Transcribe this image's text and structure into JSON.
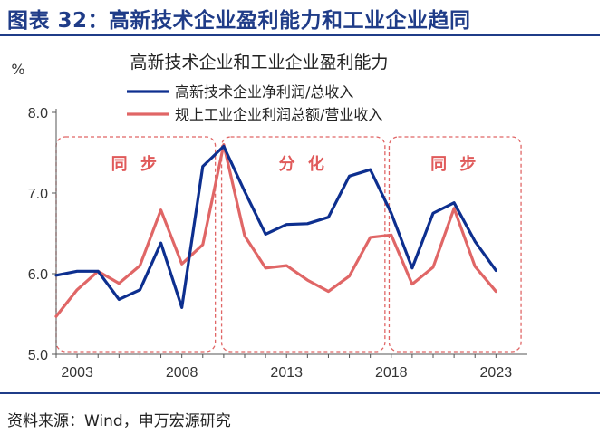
{
  "header": {
    "title": "图表 32：高新技术企业盈利能力和工业企业趋同"
  },
  "footer": {
    "source": "资料来源：Wind，申万宏源研究"
  },
  "colors": {
    "accent": "#1f3c88",
    "series_blue": "#0d2f8f",
    "series_red": "#e06666"
  },
  "chart_data": {
    "type": "line",
    "title": "高新技术企业和工业企业盈利能力",
    "unit_label": "%",
    "x": [
      2002,
      2003,
      2004,
      2005,
      2006,
      2007,
      2008,
      2009,
      2010,
      2011,
      2012,
      2013,
      2014,
      2015,
      2016,
      2017,
      2018,
      2019,
      2020,
      2021,
      2022,
      2023
    ],
    "xticks": [
      2003,
      2008,
      2013,
      2018,
      2023
    ],
    "yticks": [
      "5.0",
      "6.0",
      "7.0",
      "8.0"
    ],
    "ylim": [
      5.0,
      8.0
    ],
    "series": [
      {
        "name": "高新技术企业净利润/总收入",
        "color": "#0d2f8f",
        "values": [
          5.98,
          6.03,
          6.03,
          5.68,
          5.8,
          6.38,
          5.58,
          7.33,
          7.58,
          7.02,
          6.49,
          6.61,
          6.62,
          6.7,
          7.21,
          7.29,
          6.75,
          6.07,
          6.75,
          6.88,
          6.4,
          6.04
        ]
      },
      {
        "name": "规上工业企业利润总额/营业收入",
        "color": "#e06666",
        "values": [
          5.47,
          5.8,
          6.03,
          5.88,
          6.1,
          6.79,
          6.12,
          6.36,
          7.6,
          6.47,
          6.07,
          6.1,
          5.92,
          5.78,
          5.97,
          6.45,
          6.48,
          5.87,
          6.08,
          6.81,
          6.09,
          5.78
        ]
      }
    ],
    "annotations": [
      {
        "label": "同 步",
        "from": 2002,
        "to": 2009.6
      },
      {
        "label": "分 化",
        "from": 2009.9,
        "to": 2017.7
      },
      {
        "label": "同 步",
        "from": 2017.9,
        "to": 2024.2
      }
    ],
    "grid": false,
    "legend": "top-center"
  }
}
